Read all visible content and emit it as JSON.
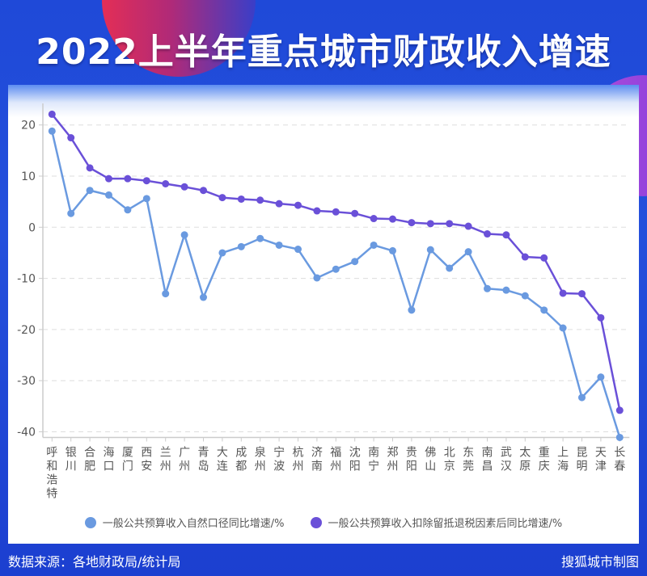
{
  "header": {
    "title": "2022上半年重点城市财政收入增速"
  },
  "footer": {
    "source": "数据来源：各地财政局/统计局",
    "credit": "搜狐城市制图"
  },
  "colors": {
    "natural": "#6a9ae0",
    "adjusted": "#6a50d8",
    "grid": "#dddddd",
    "axis": "#cccccc",
    "tick_text": "#555555"
  },
  "chart_data": {
    "type": "line",
    "title": "2022上半年重点城市财政收入增速",
    "xlabel": "",
    "ylabel": "",
    "ylim": [
      -40,
      20
    ],
    "yticks": [
      20,
      10,
      0,
      -10,
      -20,
      -30,
      -40
    ],
    "grid": true,
    "legend_position": "bottom",
    "categories": [
      "呼和浩特",
      "银川",
      "合肥",
      "海口",
      "厦门",
      "西安",
      "兰州",
      "广州",
      "青岛",
      "大连",
      "成都",
      "泉州",
      "宁波",
      "杭州",
      "济南",
      "福州",
      "沈阳",
      "南宁",
      "郑州",
      "贵阳",
      "佛山",
      "北京",
      "东莞",
      "南昌",
      "武汉",
      "太原",
      "重庆",
      "上海",
      "昆明",
      "天津",
      "长春"
    ],
    "series": [
      {
        "name": "一般公共预算收入自然口径同比增速/%",
        "values": [
          18.8,
          2.7,
          7.2,
          6.3,
          3.4,
          5.6,
          -13.0,
          -1.5,
          -13.7,
          -5.0,
          -3.8,
          -2.2,
          -3.5,
          -4.3,
          -9.9,
          -8.2,
          -6.7,
          -3.5,
          -4.6,
          -16.2,
          -4.4,
          -8.0,
          -4.8,
          -12.0,
          -12.3,
          -13.4,
          -16.2,
          -19.7,
          -33.3,
          -29.3,
          -41.1
        ]
      },
      {
        "name": "一般公共预算收入扣除留抵退税因素后同比增速/%",
        "values": [
          22.1,
          17.5,
          11.6,
          9.5,
          9.5,
          9.1,
          8.5,
          7.9,
          7.2,
          5.8,
          5.5,
          5.3,
          4.6,
          4.3,
          3.2,
          3.0,
          2.7,
          1.7,
          1.6,
          0.9,
          0.7,
          0.7,
          0.2,
          -1.3,
          -1.5,
          -5.8,
          -6.0,
          -12.9,
          -13.0,
          -17.7,
          -35.8
        ]
      }
    ]
  },
  "legend": {
    "items": [
      {
        "label": "一般公共预算收入自然口径同比增速/%",
        "color": "#6a9ae0"
      },
      {
        "label": "一般公共预算收入扣除留抵退税因素后同比增速/%",
        "color": "#6a50d8"
      }
    ]
  }
}
